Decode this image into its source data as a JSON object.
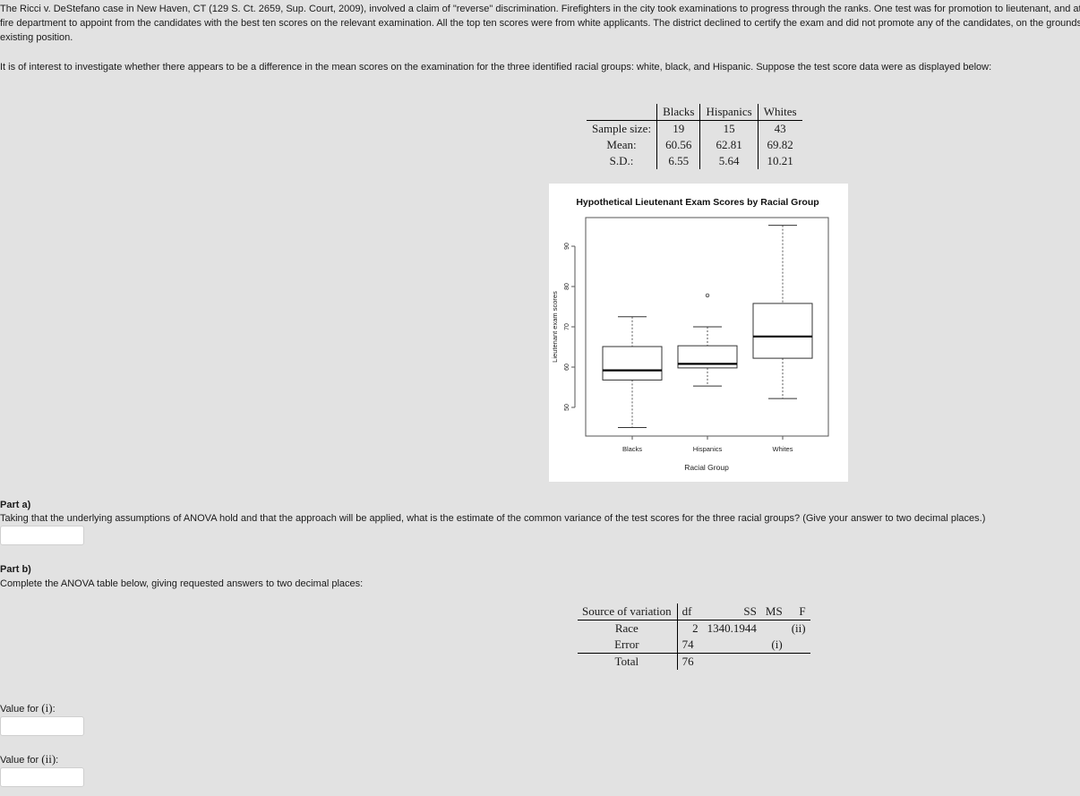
{
  "intro": {
    "line1": "The Ricci v. DeStefano case in New Haven, CT (129 S. Ct. 2659, Sup. Court, 2009), involved a claim of \"reverse\" discrimination. Firefighters in the city took examinations to progress through the ranks. One test was for promotion to lieutenant, and at the",
    "line2": "fire department to appoint from the candidates with the best ten scores on the relevant examination. All the top ten scores were from white applicants. The district declined to certify the exam and did not promote any of the candidates, on the grounds tha",
    "line3": "existing position.",
    "para2": "It is of interest to investigate whether there appears to be a difference in the mean scores on the examination for the three identified racial groups: white, black, and Hispanic. Suppose the test score data were as displayed below:"
  },
  "summary_table": {
    "columns": [
      "Blacks",
      "Hispanics",
      "Whites"
    ],
    "rows": [
      {
        "label": "Sample size:",
        "values": [
          "19",
          "15",
          "43"
        ]
      },
      {
        "label": "Mean:",
        "values": [
          "60.56",
          "62.81",
          "69.82"
        ]
      },
      {
        "label": "S.D.:",
        "values": [
          "6.55",
          "5.64",
          "10.21"
        ]
      }
    ]
  },
  "chart_data": {
    "type": "boxplot",
    "title": "Hypothetical Lieutenant Exam Scores by Racial Group",
    "xlabel": "Racial Group",
    "ylabel": "Lieutenant exam scores",
    "ylim": [
      45,
      96
    ],
    "yticks": [
      "50",
      "60",
      "70",
      "80",
      "90"
    ],
    "categories": [
      "Blacks",
      "Hispanics",
      "Whites"
    ],
    "boxes": [
      {
        "name": "Blacks",
        "min": 45,
        "q1": 56.8,
        "median": 59.2,
        "q3": 65.1,
        "max": 72.5,
        "outliers": []
      },
      {
        "name": "Hispanics",
        "min": 55.3,
        "q1": 59.8,
        "median": 60.8,
        "q3": 65.3,
        "max": 70,
        "outliers": [
          77.8
        ]
      },
      {
        "name": "Whites",
        "min": 52.2,
        "q1": 62.2,
        "median": 67.6,
        "q3": 75.8,
        "max": 95.2,
        "outliers": []
      }
    ]
  },
  "part_a": {
    "heading": "Part a)",
    "text": "Taking that the underlying assumptions of ANOVA hold and that the approach will be applied, what is the estimate of the common variance of the test scores for the three racial groups? (Give your answer to two decimal places.)",
    "value": ""
  },
  "part_b": {
    "heading": "Part b)",
    "text": "Complete the ANOVA table below, giving requested answers to two decimal places:"
  },
  "anova_table": {
    "headers": {
      "source": "Source of variation",
      "df": "df",
      "ss": "SS",
      "ms": "MS",
      "f": "F"
    },
    "rows": [
      {
        "source": "Race",
        "df": "2",
        "ss": "1340.1944",
        "ms": "",
        "f": "(ii)"
      },
      {
        "source": "Error",
        "df": "74",
        "ss": "",
        "ms": "(i)",
        "f": ""
      },
      {
        "source": "Total",
        "df": "76",
        "ss": "",
        "ms": "",
        "f": ""
      }
    ]
  },
  "value_i": {
    "prefix": "Value for ",
    "symbol": "(i)",
    "suffix": ":",
    "value": ""
  },
  "value_ii": {
    "prefix": "Value for ",
    "symbol": "(ii)",
    "suffix": ":",
    "value": ""
  }
}
